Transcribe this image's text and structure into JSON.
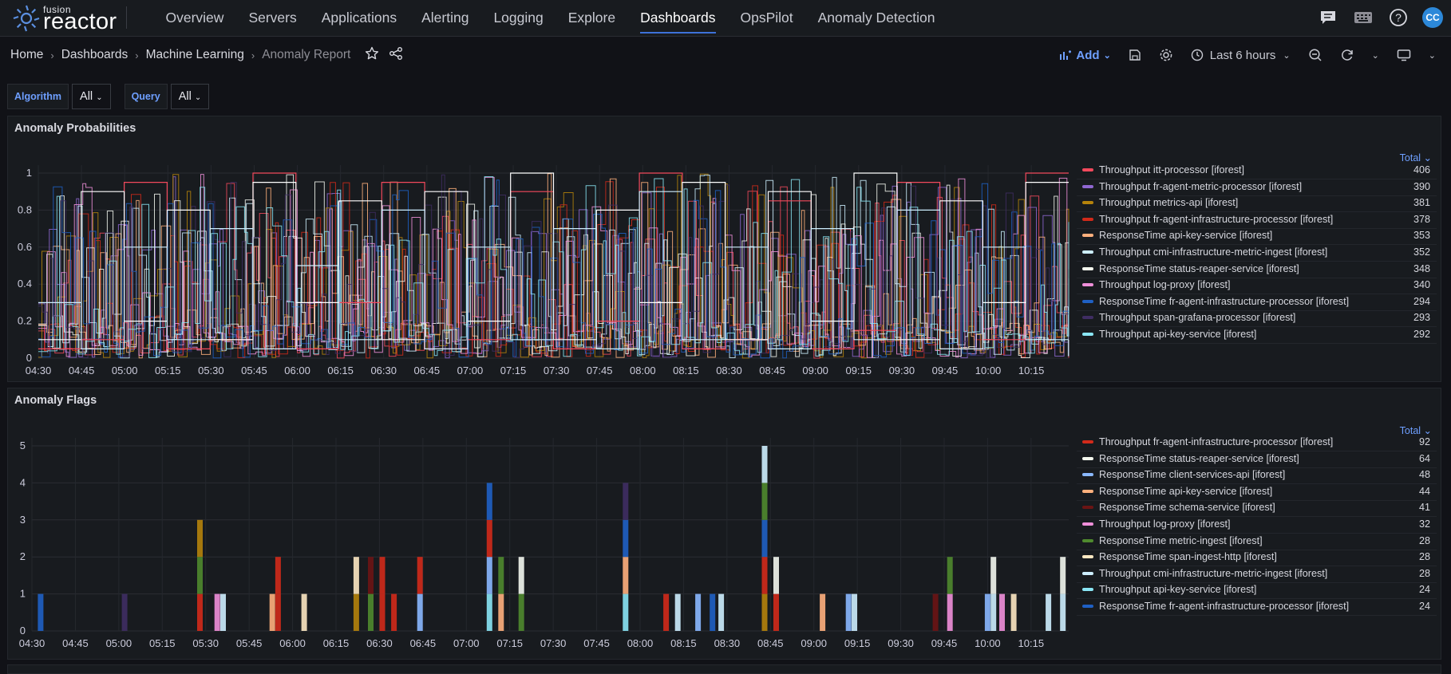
{
  "topnav": {
    "logo_small": "fusion",
    "logo_big": "reactor",
    "items": [
      {
        "label": "Overview"
      },
      {
        "label": "Servers"
      },
      {
        "label": "Applications"
      },
      {
        "label": "Alerting"
      },
      {
        "label": "Logging"
      },
      {
        "label": "Explore"
      },
      {
        "label": "Dashboards"
      },
      {
        "label": "OpsPilot"
      },
      {
        "label": "Anomaly Detection"
      }
    ],
    "active": "Dashboards",
    "icons": [
      "chat-icon",
      "keyboard-icon",
      "help-icon"
    ],
    "avatar": "CC"
  },
  "breadcrumb": [
    "Home",
    "Dashboards",
    "Machine Learning",
    "Anomaly Report"
  ],
  "toolbar": {
    "add": "Add",
    "time_range": "Last 6 hours",
    "icons": [
      "save-icon",
      "settings-icon",
      "clock-icon",
      "zoom-out-icon",
      "refresh-icon",
      "tv-icon"
    ]
  },
  "variables": [
    {
      "label": "Algorithm",
      "value": "All"
    },
    {
      "label": "Query",
      "value": "All"
    }
  ],
  "colors": {
    "accent": "#6e9fff",
    "active_underline": "#3d71d9",
    "panel_bg": "#181b1f",
    "page_bg": "#111217"
  },
  "panels": [
    {
      "title": "Anomaly Probabilities",
      "legend_header": "Total ⌄",
      "legend": [
        {
          "name": "Throughput itt-processor [iforest]",
          "total": "406",
          "color": "#f2495c"
        },
        {
          "name": "Throughput fr-agent-metric-processor [iforest]",
          "total": "390",
          "color": "#8f67d1"
        },
        {
          "name": "Throughput metrics-api [iforest]",
          "total": "381",
          "color": "#b5830b"
        },
        {
          "name": "Throughput fr-agent-infrastructure-processor [iforest]",
          "total": "378",
          "color": "#d12a1a"
        },
        {
          "name": "ResponseTime api-key-service [iforest]",
          "total": "353",
          "color": "#ffb07d"
        },
        {
          "name": "Throughput cmi-infrastructure-metric-ingest [iforest]",
          "total": "352",
          "color": "#cdeefe"
        },
        {
          "name": "ResponseTime status-reaper-service [iforest]",
          "total": "348",
          "color": "#f3f7ee"
        },
        {
          "name": "Throughput log-proxy [iforest]",
          "total": "340",
          "color": "#ef8fd9"
        },
        {
          "name": "ResponseTime fr-agent-infrastructure-processor [iforest]",
          "total": "294",
          "color": "#1f60c4"
        },
        {
          "name": "Throughput span-grafana-processor [iforest]",
          "total": "293",
          "color": "#3f2d63"
        },
        {
          "name": "Throughput api-key-service [iforest]",
          "total": "292",
          "color": "#8ae6f5"
        }
      ]
    },
    {
      "title": "Anomaly Flags",
      "legend_header": "Total ⌄",
      "legend": [
        {
          "name": "Throughput fr-agent-infrastructure-processor [iforest]",
          "total": "92",
          "color": "#d12a1a"
        },
        {
          "name": "ResponseTime status-reaper-service [iforest]",
          "total": "64",
          "color": "#f3f7ee"
        },
        {
          "name": "ResponseTime client-services-api [iforest]",
          "total": "48",
          "color": "#8ab8ff"
        },
        {
          "name": "ResponseTime api-key-service [iforest]",
          "total": "44",
          "color": "#ffb07d"
        },
        {
          "name": "ResponseTime schema-service [iforest]",
          "total": "41",
          "color": "#6b1414"
        },
        {
          "name": "Throughput log-proxy [iforest]",
          "total": "32",
          "color": "#ef8fd9"
        },
        {
          "name": "ResponseTime metric-ingest [iforest]",
          "total": "28",
          "color": "#4f8a2e"
        },
        {
          "name": "ResponseTime span-ingest-http [iforest]",
          "total": "28",
          "color": "#fde8c2"
        },
        {
          "name": "Throughput cmi-infrastructure-metric-ingest [iforest]",
          "total": "28",
          "color": "#cdeefe"
        },
        {
          "name": "Throughput api-key-service [iforest]",
          "total": "24",
          "color": "#8ae6f5"
        },
        {
          "name": "ResponseTime fr-agent-infrastructure-processor [iforest]",
          "total": "24",
          "color": "#1f60c4"
        }
      ]
    }
  ],
  "chart_data": [
    {
      "type": "line",
      "title": "Anomaly Probabilities",
      "ylim": [
        0,
        1
      ],
      "yticks": [
        "0",
        "0.2",
        "0.4",
        "0.6",
        "0.8",
        "1"
      ],
      "xticks": [
        "04:30",
        "04:45",
        "05:00",
        "05:15",
        "05:30",
        "05:45",
        "06:00",
        "06:15",
        "06:30",
        "06:45",
        "07:00",
        "07:15",
        "07:30",
        "07:45",
        "08:00",
        "08:15",
        "08:30",
        "08:45",
        "09:00",
        "09:15",
        "09:30",
        "09:45",
        "10:00",
        "10:15"
      ],
      "x_range": [
        "04:30",
        "10:28"
      ],
      "grid": true,
      "legend_placement": "right",
      "series": [
        {
          "name": "Throughput itt-processor [iforest]",
          "values": [
            0.05,
            0.1,
            0.95,
            0.05,
            0.1,
            1.0,
            0.05,
            0.3,
            0.95,
            0.05,
            0.1,
            0.9,
            0.05,
            0.2,
            1.0,
            0.05,
            0.1,
            0.85,
            0.05,
            0.15,
            0.95,
            0.05,
            0.1,
            1.0
          ]
        },
        {
          "name": "ResponseTime status-reaper-service [iforest]",
          "values": [
            0.1,
            0.9,
            0.2,
            0.8,
            0.1,
            0.95,
            0.3,
            0.85,
            0.1,
            0.9,
            0.2,
            1.0,
            0.1,
            0.8,
            0.3,
            0.95,
            0.1,
            0.9,
            0.2,
            1.0,
            0.1,
            0.85,
            0.3,
            0.95
          ]
        },
        {
          "name": "Throughput cmi-infrastructure-metric-ingest [iforest]",
          "values": [
            0.3,
            0.05,
            0.6,
            0.1,
            0.7,
            0.05,
            0.5,
            0.1,
            0.8,
            0.05,
            0.6,
            0.1,
            0.7,
            0.05,
            0.9,
            0.1,
            0.6,
            0.05,
            0.7,
            0.1,
            0.8,
            0.05,
            0.6,
            0.1
          ]
        }
      ]
    },
    {
      "type": "bar",
      "title": "Anomaly Flags",
      "ylim": [
        0,
        5
      ],
      "yticks": [
        "0",
        "1",
        "2",
        "3",
        "4",
        "5"
      ],
      "xticks": [
        "04:30",
        "04:45",
        "05:00",
        "05:15",
        "05:30",
        "05:45",
        "06:00",
        "06:15",
        "06:30",
        "06:45",
        "07:00",
        "07:15",
        "07:30",
        "07:45",
        "08:00",
        "08:15",
        "08:30",
        "08:45",
        "09:00",
        "09:15",
        "09:30",
        "09:45",
        "10:00",
        "10:15"
      ],
      "x_range": [
        "04:30",
        "10:28"
      ],
      "grid": true,
      "legend_placement": "right",
      "bars": [
        {
          "t": "04:33",
          "segments": [
            1
          ],
          "series": [
            "ResponseTime fr-agent-infrastructure-processor [iforest]"
          ]
        },
        {
          "t": "05:02",
          "segments": [
            1
          ],
          "series": [
            "Throughput span-grafana-processor [iforest]"
          ]
        },
        {
          "t": "05:28",
          "segments": [
            1,
            1,
            1
          ],
          "series": [
            "Throughput fr-agent-infrastructure-processor [iforest]",
            "ResponseTime metric-ingest [iforest]",
            "Throughput metrics-api [iforest]"
          ]
        },
        {
          "t": "05:34",
          "segments": [
            1
          ],
          "series": [
            "Throughput log-proxy [iforest]"
          ]
        },
        {
          "t": "05:36",
          "segments": [
            1
          ],
          "series": [
            "Throughput cmi-infrastructure-metric-ingest [iforest]"
          ]
        },
        {
          "t": "05:53",
          "segments": [
            1
          ],
          "series": [
            "ResponseTime api-key-service [iforest]"
          ]
        },
        {
          "t": "05:55",
          "segments": [
            1,
            1
          ],
          "series": [
            "Throughput fr-agent-infrastructure-processor [iforest]",
            "Throughput fr-agent-infrastructure-processor [iforest]"
          ]
        },
        {
          "t": "06:04",
          "segments": [
            1
          ],
          "series": [
            "ResponseTime span-ingest-http [iforest]"
          ]
        },
        {
          "t": "06:22",
          "segments": [
            1,
            1
          ],
          "series": [
            "Throughput metrics-api [iforest]",
            "ResponseTime span-ingest-http [iforest]"
          ]
        },
        {
          "t": "06:27",
          "segments": [
            1,
            1
          ],
          "series": [
            "ResponseTime metric-ingest [iforest]",
            "ResponseTime schema-service [iforest]"
          ]
        },
        {
          "t": "06:31",
          "segments": [
            1,
            1
          ],
          "series": [
            "Throughput fr-agent-infrastructure-processor [iforest]",
            "Throughput fr-agent-infrastructure-processor [iforest]"
          ]
        },
        {
          "t": "06:35",
          "segments": [
            1
          ],
          "series": [
            "Throughput fr-agent-infrastructure-processor [iforest]"
          ]
        },
        {
          "t": "06:44",
          "segments": [
            1,
            1
          ],
          "series": [
            "ResponseTime client-services-api [iforest]",
            "Throughput fr-agent-infrastructure-processor [iforest]"
          ]
        },
        {
          "t": "07:08",
          "segments": [
            1,
            1,
            1,
            1
          ],
          "series": [
            "Throughput api-key-service [iforest]",
            "ResponseTime client-services-api [iforest]",
            "Throughput fr-agent-infrastructure-processor [iforest]",
            "ResponseTime fr-agent-infrastructure-processor [iforest]"
          ]
        },
        {
          "t": "07:12",
          "segments": [
            1,
            1
          ],
          "series": [
            "ResponseTime api-key-service [iforest]",
            "ResponseTime metric-ingest [iforest]"
          ]
        },
        {
          "t": "07:19",
          "segments": [
            1,
            1
          ],
          "series": [
            "ResponseTime metric-ingest [iforest]",
            "ResponseTime status-reaper-service [iforest]"
          ]
        },
        {
          "t": "07:55",
          "segments": [
            1,
            1,
            1,
            1
          ],
          "series": [
            "Throughput api-key-service [iforest]",
            "ResponseTime api-key-service [iforest]",
            "ResponseTime fr-agent-infrastructure-processor [iforest]",
            "Throughput span-grafana-processor [iforest]"
          ]
        },
        {
          "t": "08:09",
          "segments": [
            1
          ],
          "series": [
            "Throughput fr-agent-infrastructure-processor [iforest]"
          ]
        },
        {
          "t": "08:13",
          "segments": [
            1
          ],
          "series": [
            "Throughput cmi-infrastructure-metric-ingest [iforest]"
          ]
        },
        {
          "t": "08:20",
          "segments": [
            1
          ],
          "series": [
            "ResponseTime client-services-api [iforest]"
          ]
        },
        {
          "t": "08:25",
          "segments": [
            1
          ],
          "series": [
            "ResponseTime fr-agent-infrastructure-processor [iforest]"
          ]
        },
        {
          "t": "08:28",
          "segments": [
            1
          ],
          "series": [
            "Throughput cmi-infrastructure-metric-ingest [iforest]"
          ]
        },
        {
          "t": "08:43",
          "segments": [
            1,
            1,
            1,
            1,
            1
          ],
          "series": [
            "Throughput metrics-api [iforest]",
            "Throughput fr-agent-infrastructure-processor [iforest]",
            "ResponseTime fr-agent-infrastructure-processor [iforest]",
            "ResponseTime metric-ingest [iforest]",
            "Throughput cmi-infrastructure-metric-ingest [iforest]"
          ]
        },
        {
          "t": "08:47",
          "segments": [
            1,
            1
          ],
          "series": [
            "Throughput fr-agent-infrastructure-processor [iforest]",
            "ResponseTime status-reaper-service [iforest]"
          ]
        },
        {
          "t": "09:03",
          "segments": [
            1
          ],
          "series": [
            "ResponseTime api-key-service [iforest]"
          ]
        },
        {
          "t": "09:12",
          "segments": [
            1
          ],
          "series": [
            "ResponseTime client-services-api [iforest]"
          ]
        },
        {
          "t": "09:14",
          "segments": [
            1
          ],
          "series": [
            "Throughput cmi-infrastructure-metric-ingest [iforest]"
          ]
        },
        {
          "t": "09:42",
          "segments": [
            1
          ],
          "series": [
            "ResponseTime schema-service [iforest]"
          ]
        },
        {
          "t": "09:47",
          "segments": [
            1,
            1
          ],
          "series": [
            "Throughput log-proxy [iforest]",
            "ResponseTime metric-ingest [iforest]"
          ]
        },
        {
          "t": "10:00",
          "segments": [
            1
          ],
          "series": [
            "ResponseTime client-services-api [iforest]"
          ]
        },
        {
          "t": "10:02",
          "segments": [
            1,
            1
          ],
          "series": [
            "Throughput cmi-infrastructure-metric-ingest [iforest]",
            "ResponseTime status-reaper-service [iforest]"
          ]
        },
        {
          "t": "10:05",
          "segments": [
            1
          ],
          "series": [
            "Throughput log-proxy [iforest]"
          ]
        },
        {
          "t": "10:09",
          "segments": [
            1
          ],
          "series": [
            "ResponseTime span-ingest-http [iforest]"
          ]
        },
        {
          "t": "10:21",
          "segments": [
            1
          ],
          "series": [
            "Throughput cmi-infrastructure-metric-ingest [iforest]"
          ]
        },
        {
          "t": "10:26",
          "segments": [
            1,
            1
          ],
          "series": [
            "Throughput cmi-infrastructure-metric-ingest [iforest]",
            "ResponseTime status-reaper-service [iforest]"
          ]
        }
      ]
    }
  ]
}
